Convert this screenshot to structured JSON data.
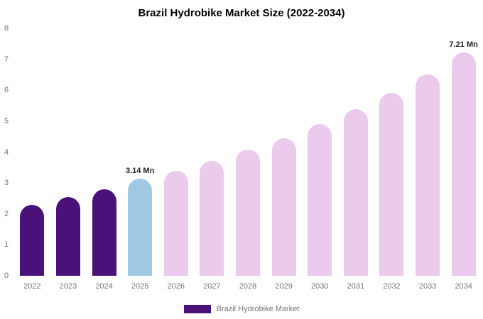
{
  "title": "Brazil Hydrobike Market Size (2022-2034)",
  "legend": {
    "label": "Brazil Hydrobike Market",
    "swatch_color": "#4A1278"
  },
  "chart_data": {
    "type": "bar",
    "title": "Brazil Hydrobike Market Size (2022-2034)",
    "categories": [
      "2022",
      "2023",
      "2024",
      "2025",
      "2026",
      "2027",
      "2028",
      "2029",
      "2030",
      "2031",
      "2032",
      "2033",
      "2034"
    ],
    "values": [
      2.3,
      2.55,
      2.8,
      3.14,
      3.4,
      3.72,
      4.08,
      4.45,
      4.9,
      5.38,
      5.92,
      6.5,
      7.21
    ],
    "bar_colors": [
      "#4A1278",
      "#4A1278",
      "#4A1278",
      "#9FC8E2",
      "#EACBEC",
      "#EACBEC",
      "#EACBEC",
      "#EACBEC",
      "#EACBEC",
      "#EACBEC",
      "#EACBEC",
      "#EACBEC",
      "#EACBEC"
    ],
    "annotations": [
      {
        "index": 3,
        "text": "3.14 Mn"
      },
      {
        "index": 12,
        "text": "7.21 Mn"
      }
    ],
    "xlabel": "",
    "ylabel": "",
    "ylim": [
      0,
      8
    ],
    "yticks": [
      0,
      1,
      2,
      3,
      4,
      5,
      6,
      7,
      8
    ],
    "grid": false,
    "legend_position": "bottom"
  }
}
